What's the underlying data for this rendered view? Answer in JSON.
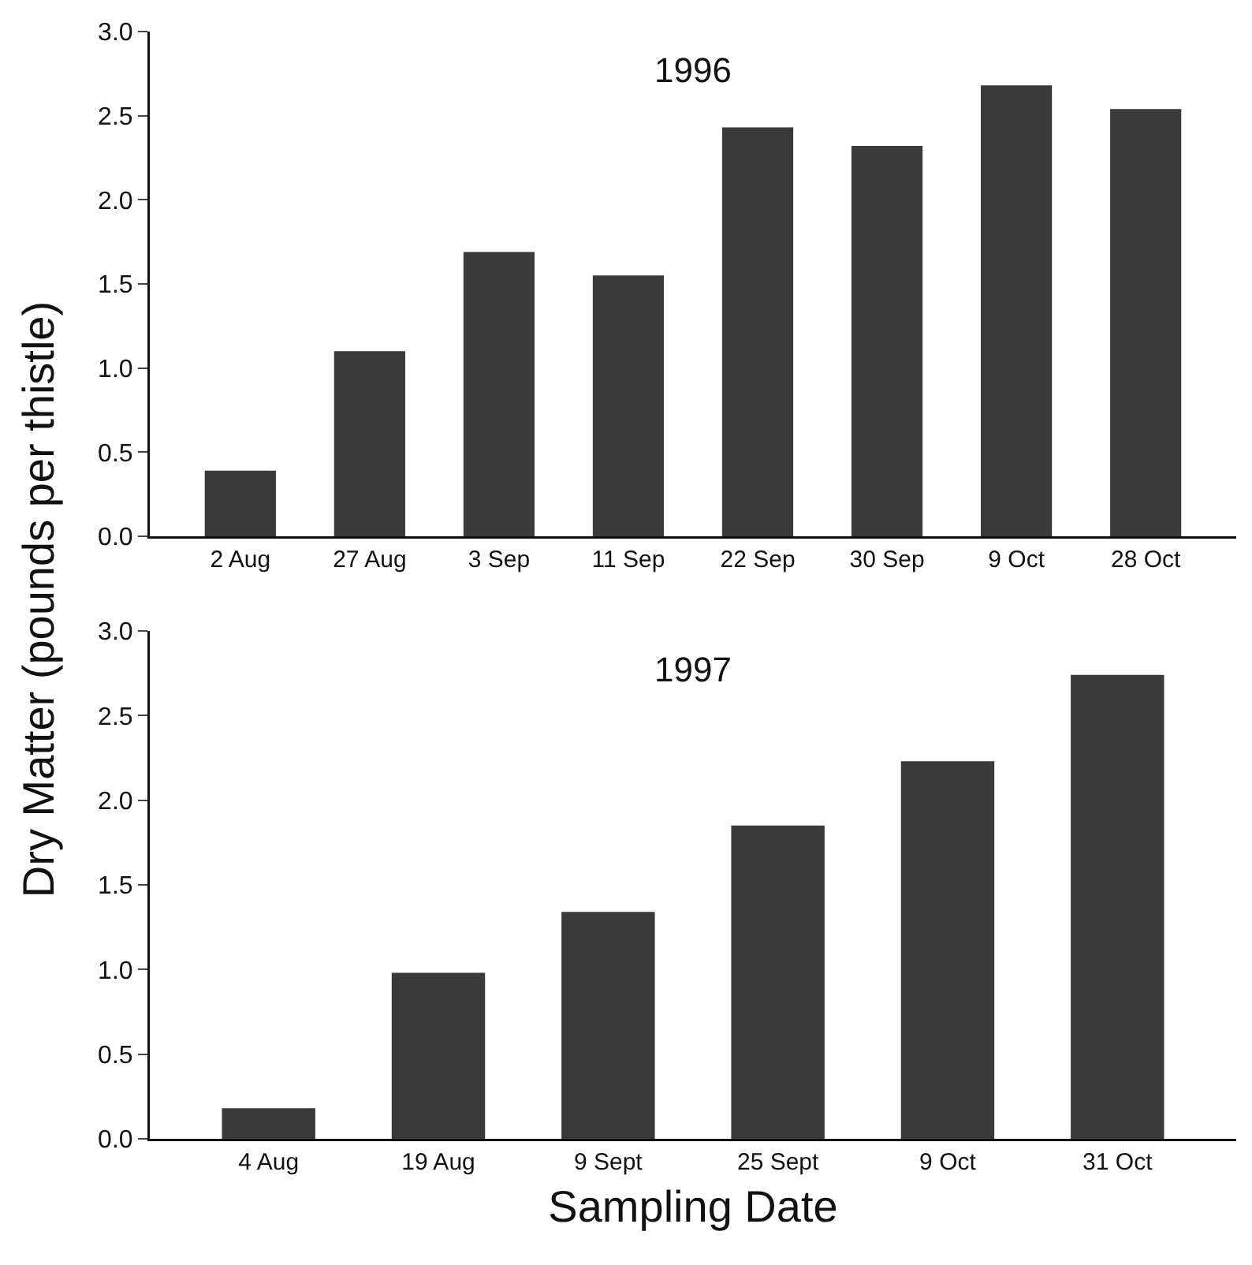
{
  "chart_data": [
    {
      "type": "bar",
      "title": "1996",
      "categories": [
        "2 Aug",
        "27 Aug",
        "3 Sep",
        "11 Sep",
        "22 Sep",
        "30 Sep",
        "9 Oct",
        "28 Oct"
      ],
      "values": [
        0.39,
        1.1,
        1.69,
        1.55,
        2.43,
        2.32,
        2.68,
        2.54
      ],
      "color": "#3a3a3a",
      "ylim": [
        0,
        3
      ],
      "yticks": [
        {
          "value": 0,
          "label": "0.0"
        },
        {
          "value": 0.5,
          "label": "0.5"
        },
        {
          "value": 1,
          "label": "1.0"
        },
        {
          "value": 1.5,
          "label": "1.5"
        },
        {
          "value": 2,
          "label": "2.0"
        },
        {
          "value": 2.5,
          "label": "2.5"
        },
        {
          "value": 3,
          "label": "3.0"
        }
      ],
      "grid": false
    },
    {
      "type": "bar",
      "title": "1997",
      "xlabel": "Sampling Date",
      "ylabel": "Dry Matter (pounds per thistle)",
      "categories": [
        "4 Aug",
        "19 Aug",
        "9 Sept",
        "25 Sept",
        "9 Oct",
        "31 Oct"
      ],
      "values": [
        0.18,
        0.98,
        1.34,
        1.85,
        2.23,
        2.74
      ],
      "color": "#3a3a3a",
      "ylim": [
        0,
        3
      ],
      "yticks": [
        {
          "value": 0,
          "label": "0.0"
        },
        {
          "value": 0.5,
          "label": "0.5"
        },
        {
          "value": 1,
          "label": "1.0"
        },
        {
          "value": 1.5,
          "label": "1.5"
        },
        {
          "value": 2,
          "label": "2.0"
        },
        {
          "value": 2.5,
          "label": "2.5"
        },
        {
          "value": 3,
          "label": "3.0"
        }
      ],
      "grid": false
    }
  ]
}
